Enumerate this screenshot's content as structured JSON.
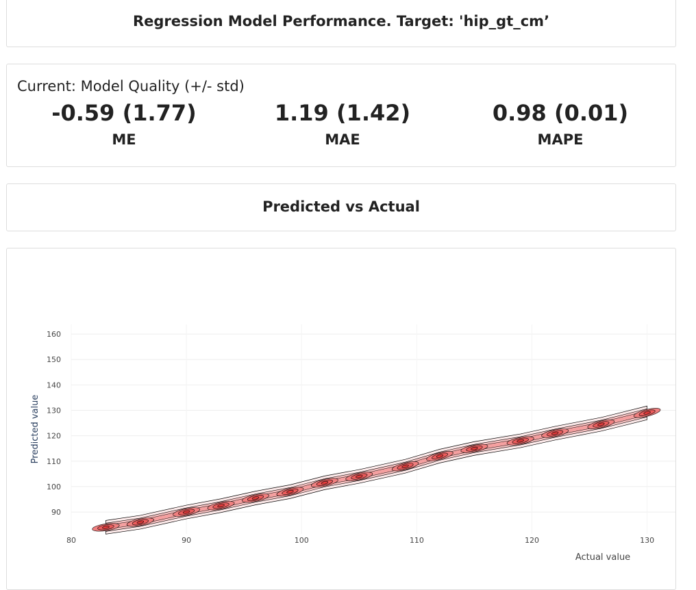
{
  "header": {
    "title": "Regression Model Performance. Target: 'hip_gt_cm’"
  },
  "metrics": {
    "title": "Current: Model Quality (+/- std)",
    "items": [
      {
        "value": "-0.59 (1.77)",
        "label": "ME"
      },
      {
        "value": "1.19 (1.42)",
        "label": "MAE"
      },
      {
        "value": "0.98 (0.01)",
        "label": "MAPE"
      }
    ]
  },
  "section": {
    "title": "Predicted vs Actual"
  },
  "chart_data": {
    "type": "contour",
    "x_label": "Actual value",
    "y_label": "Predicted value",
    "x": [
      83,
      86,
      90,
      93,
      96,
      99,
      102,
      105,
      109,
      112,
      115,
      119,
      122,
      126,
      130
    ],
    "values": [
      84,
      86,
      90,
      92.5,
      95.5,
      98,
      101.5,
      104,
      108,
      112,
      115,
      118,
      121,
      124.5,
      129
    ],
    "xlim": [
      80,
      132.7
    ],
    "ylim": [
      81.4,
      163.8
    ],
    "xticks": [
      80,
      90,
      100,
      110,
      120,
      130
    ],
    "yticks": [
      90,
      100,
      110,
      120,
      130,
      140,
      150,
      160
    ],
    "color": "#e53c3c",
    "grid": true
  }
}
